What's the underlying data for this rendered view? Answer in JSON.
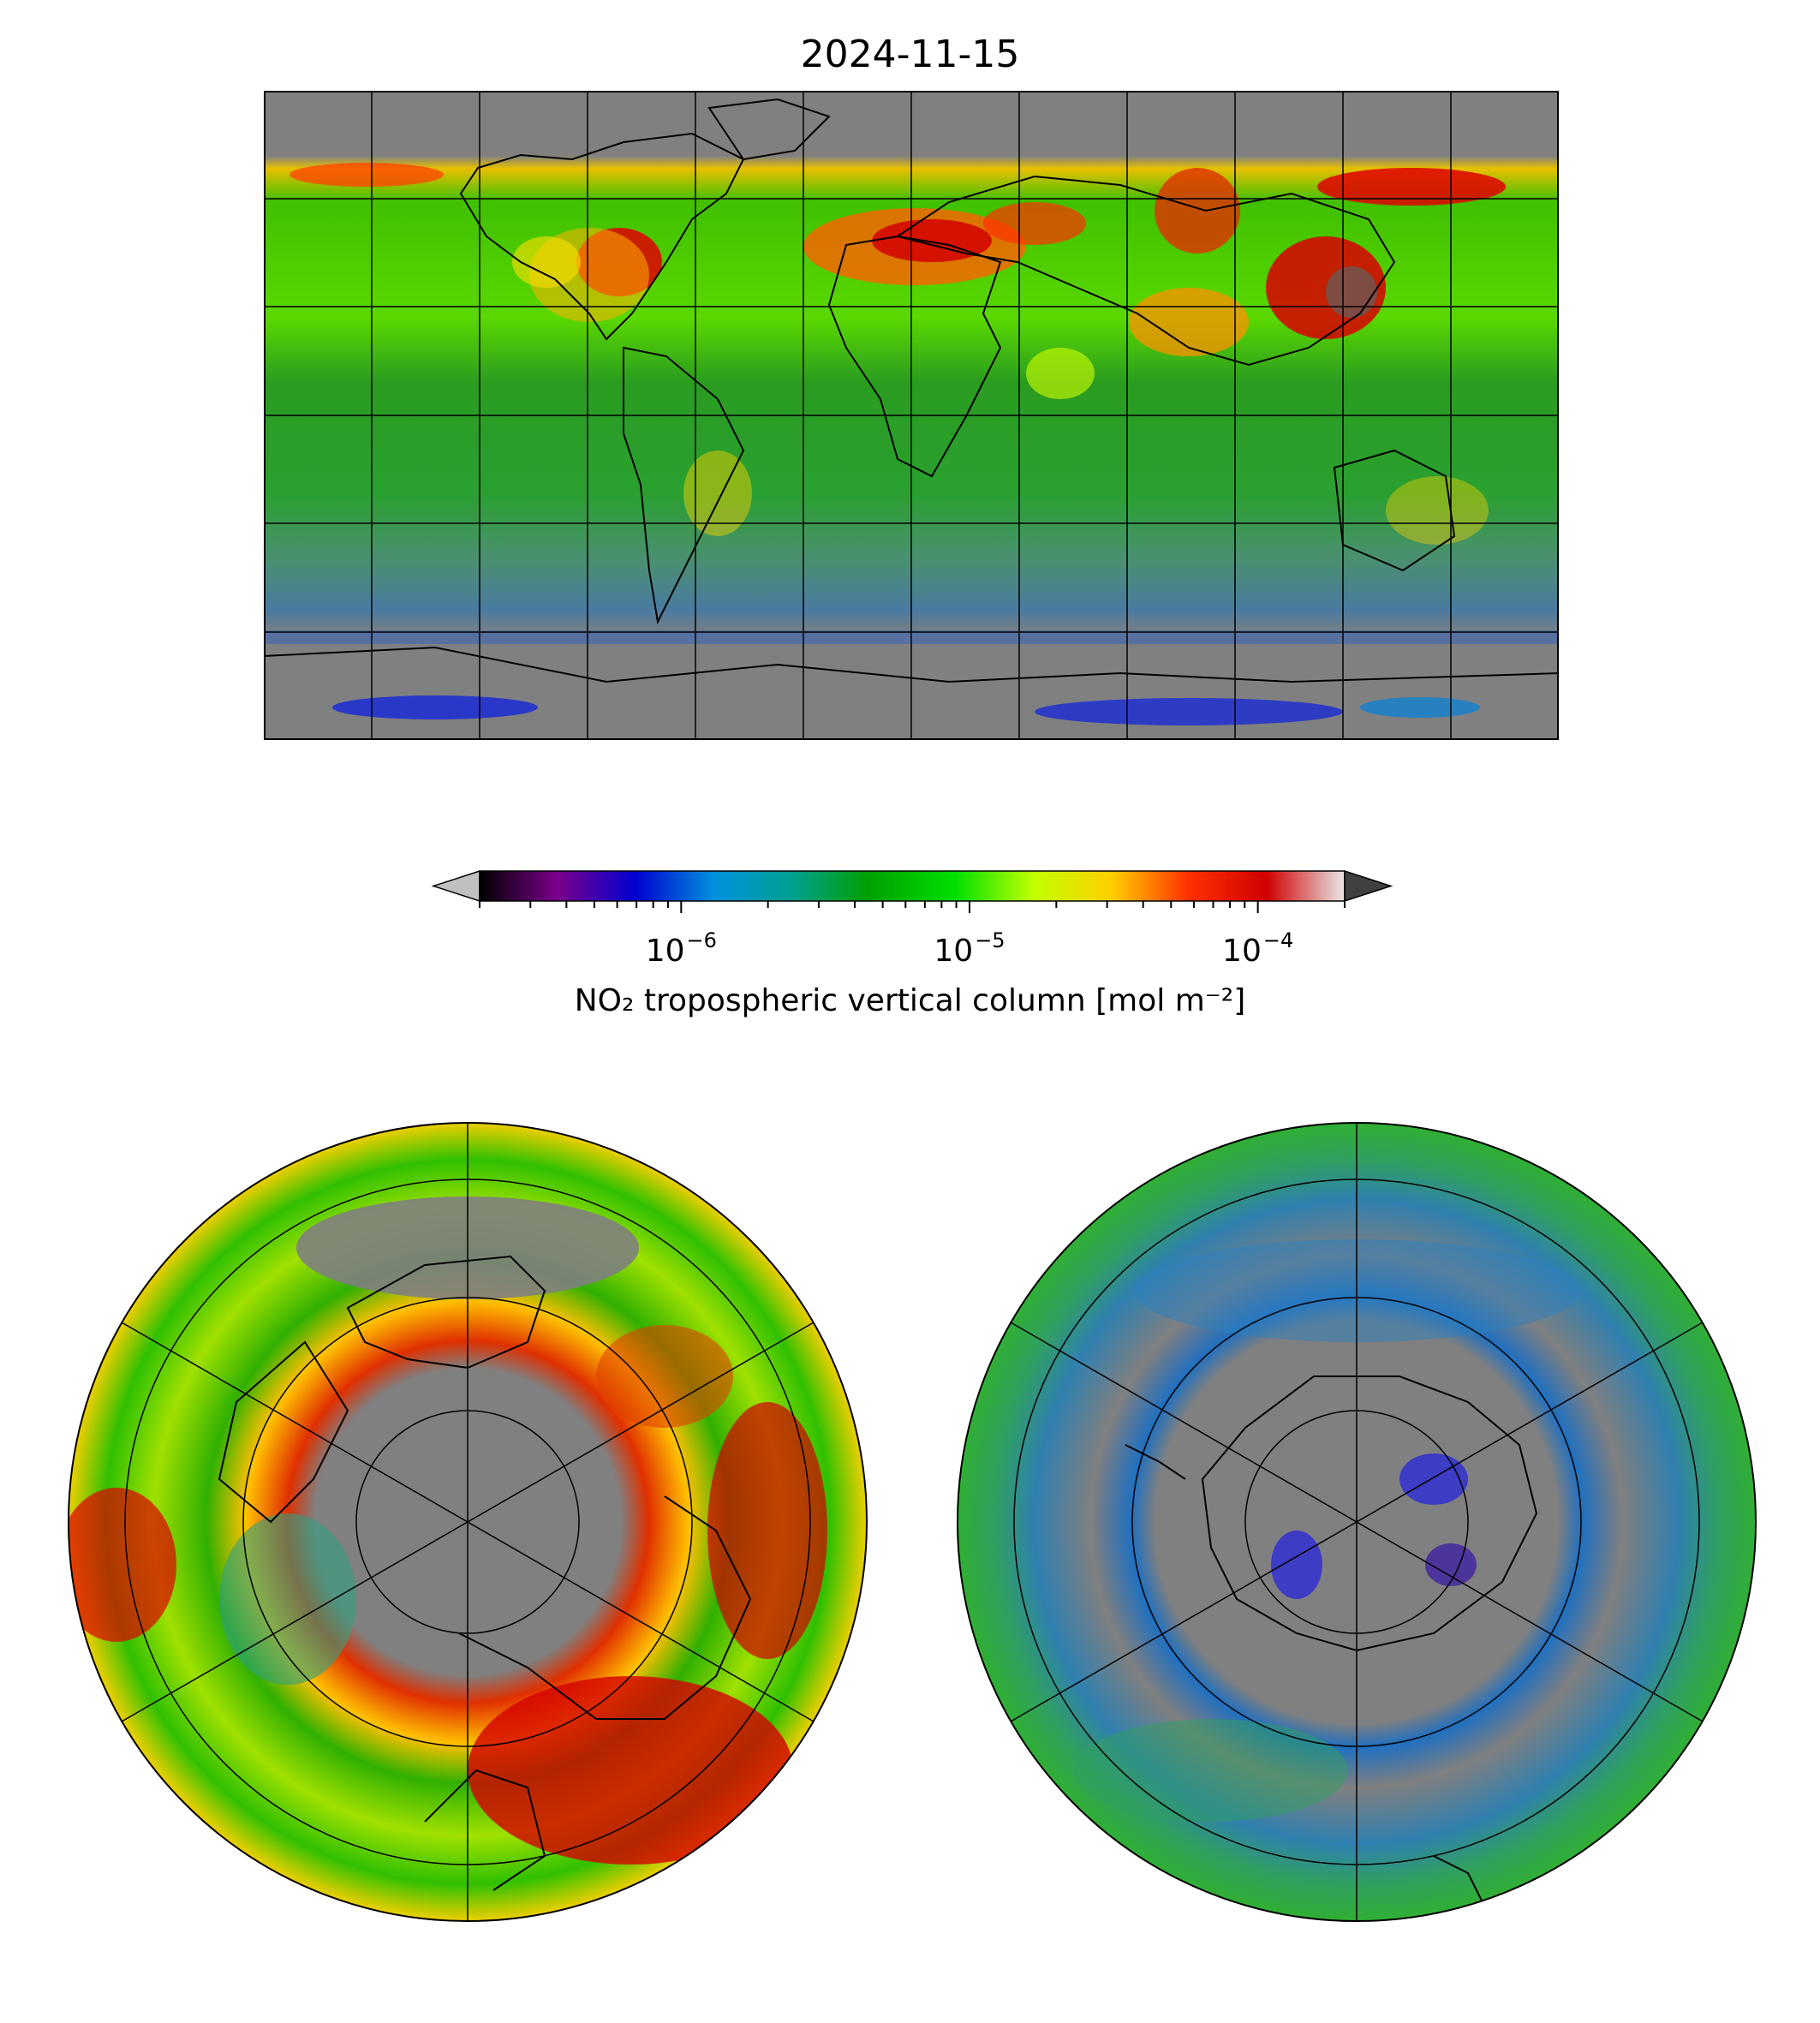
{
  "title": "2024-11-15",
  "colorbar": {
    "label": "NO₂ tropospheric vertical column [mol m⁻²]",
    "scale": "log",
    "vmin": 2e-07,
    "vmax": 0.0002,
    "extend": "both",
    "under_color": "#c0c0c0",
    "over_color": "#404040",
    "ticks": [
      {
        "value": 1e-06,
        "base": "10",
        "exp": "−6"
      },
      {
        "value": 1e-05,
        "base": "10",
        "exp": "−5"
      },
      {
        "value": 0.0001,
        "base": "10",
        "exp": "−4"
      }
    ],
    "colors": [
      "#000000",
      "#7a008a",
      "#0000d0",
      "#0090dd",
      "#00a090",
      "#00a000",
      "#00e000",
      "#c0ff00",
      "#ffd000",
      "#ff3000",
      "#d00000",
      "#e8e8e8"
    ]
  },
  "maps": {
    "background_nodata": "#808080",
    "global": {
      "projection": "equirectangular",
      "lon_range": [
        -180,
        180
      ],
      "lat_range": [
        -90,
        90
      ],
      "gridline_spacing_deg": 30
    },
    "north_polar": {
      "projection": "north-polar-stereographic",
      "lat_circles": [
        80,
        60,
        40,
        20
      ]
    },
    "south_polar": {
      "projection": "south-polar-stereographic",
      "lat_circles": [
        -80,
        -60,
        -40,
        -20
      ]
    }
  }
}
